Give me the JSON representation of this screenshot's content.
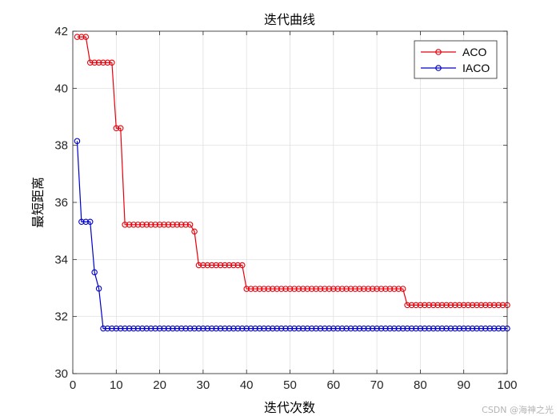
{
  "chart_data": {
    "type": "line",
    "title": "迭代曲线",
    "xlabel": "迭代次数",
    "ylabel": "最短距离",
    "xlim": [
      0,
      100
    ],
    "ylim": [
      30,
      42
    ],
    "xticks": [
      0,
      10,
      20,
      30,
      40,
      50,
      60,
      70,
      80,
      90,
      100
    ],
    "yticks": [
      30,
      32,
      34,
      36,
      38,
      40,
      42
    ],
    "grid": true,
    "legend_position": "top-right",
    "series": [
      {
        "name": "ACO",
        "color": "#e8000b",
        "marker": "circle",
        "segments": [
          {
            "from": 1,
            "to": 3,
            "value": 41.8
          },
          {
            "from": 4,
            "to": 9,
            "value": 40.9
          },
          {
            "from": 10,
            "to": 11,
            "value": 38.6
          },
          {
            "from": 12,
            "to": 27,
            "value": 35.22
          },
          {
            "from": 28,
            "to": 28,
            "value": 34.98
          },
          {
            "from": 29,
            "to": 39,
            "value": 33.8
          },
          {
            "from": 40,
            "to": 76,
            "value": 32.97
          },
          {
            "from": 77,
            "to": 100,
            "value": 32.4
          }
        ]
      },
      {
        "name": "IACO",
        "color": "#0000cc",
        "marker": "circle",
        "segments": [
          {
            "from": 1,
            "to": 1,
            "value": 38.15
          },
          {
            "from": 2,
            "to": 4,
            "value": 35.32
          },
          {
            "from": 5,
            "to": 5,
            "value": 33.55
          },
          {
            "from": 6,
            "to": 6,
            "value": 32.98
          },
          {
            "from": 7,
            "to": 100,
            "value": 31.58
          }
        ]
      }
    ]
  },
  "watermark": "CSDN @海神之光"
}
